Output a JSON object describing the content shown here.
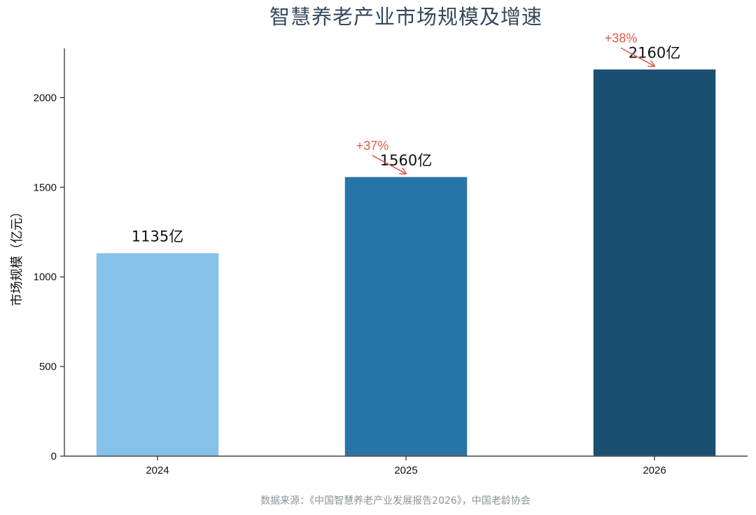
{
  "chart_data": {
    "type": "bar",
    "title": "智慧养老产业市场规模及增速",
    "xlabel": "",
    "ylabel": "市场规模（亿元）",
    "categories": [
      "2024",
      "2025",
      "2026"
    ],
    "values": [
      1135,
      1560,
      2160
    ],
    "value_labels": [
      "1135亿",
      "1560亿",
      "2160亿"
    ],
    "bar_colors": [
      "#85c1e9",
      "#2874a6",
      "#1b4f72"
    ],
    "growth_annotations": [
      {
        "category": "2025",
        "label": "+37%"
      },
      {
        "category": "2026",
        "label": "+38%"
      }
    ],
    "annotation_color": "#e05a4a",
    "ylim": [
      0,
      2275
    ],
    "yticks": [
      0,
      500,
      1000,
      1500,
      2000
    ],
    "grid": false,
    "source": "数据来源：《中国智慧养老产业发展报告2026》，中国老龄协会"
  }
}
